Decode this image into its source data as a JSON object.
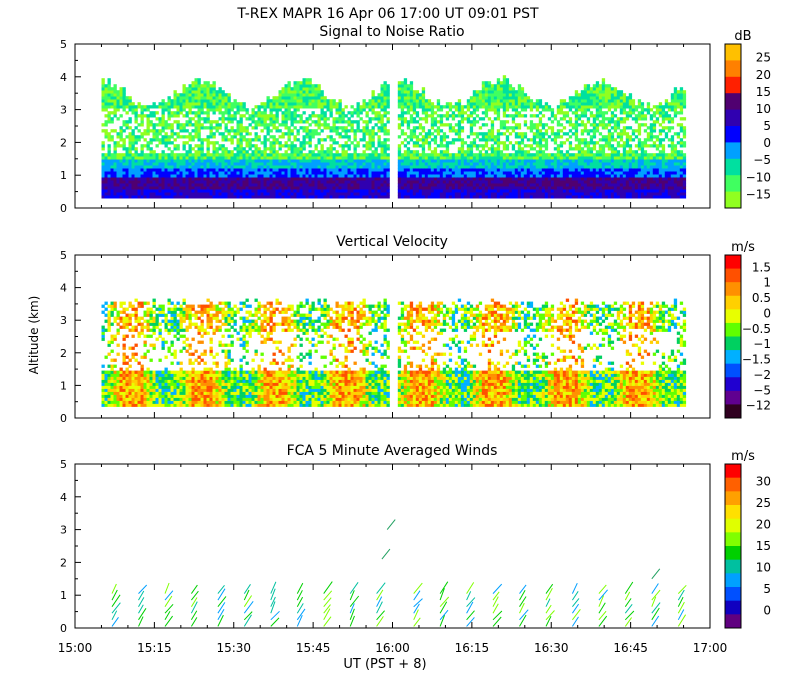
{
  "figure": {
    "title": "T-REX  MAPR 16 Apr 06  17:00 UT  09:01  PST",
    "ylabel": "Altitude (km)",
    "xlabel": "UT  (PST + 8)"
  },
  "chart_data": [
    {
      "type": "heatmap",
      "title": "Signal to Noise Ratio",
      "ylim": [
        0,
        5
      ],
      "yticks": [
        "0",
        "1",
        "2",
        "3",
        "4",
        "5"
      ],
      "x_range_ut": [
        "15:00",
        "17:00"
      ],
      "x_ticks": [
        "15:00",
        "15:15",
        "15:30",
        "15:45",
        "16:00",
        "16:15",
        "16:30",
        "16:45",
        "17:00"
      ],
      "data_gap_ut": [
        "15:59",
        "16:01"
      ],
      "colorbar": {
        "unit": "dB",
        "labels": [
          "25",
          "20",
          "15",
          "10",
          "5",
          "0",
          "−5",
          "−10",
          "−15"
        ],
        "colors": [
          "#ffc000",
          "#ff8000",
          "#ff2000",
          "#500070",
          "#3000b0",
          "#0000ff",
          "#00a0ff",
          "#00e0a0",
          "#40ff60",
          "#90ff20"
        ]
      }
    },
    {
      "type": "heatmap",
      "title": "Vertical Velocity",
      "ylim": [
        0,
        5
      ],
      "yticks": [
        "0",
        "1",
        "2",
        "3",
        "4",
        "5"
      ],
      "x_range_ut": [
        "15:00",
        "17:00"
      ],
      "colorbar": {
        "unit": "m/s",
        "labels": [
          "1.5",
          "1",
          "0.5",
          "0",
          "−0.5",
          "−1",
          "−1.5",
          "−2",
          "−5",
          "−12"
        ],
        "colors": [
          "#ff0000",
          "#ff5000",
          "#ff9000",
          "#ffd000",
          "#e8ff00",
          "#60ff00",
          "#00d060",
          "#00b0ff",
          "#0050ff",
          "#2000d0",
          "#600090",
          "#300020"
        ]
      }
    },
    {
      "type": "scatter",
      "title": "FCA 5 Minute Averaged Winds",
      "ylim": [
        0,
        5
      ],
      "yticks": [
        "0",
        "1",
        "2",
        "3",
        "4",
        "5"
      ],
      "x_range_ut": [
        "15:00",
        "17:00"
      ],
      "colorbar": {
        "unit": "m/s",
        "labels": [
          "30",
          "25",
          "20",
          "15",
          "10",
          "5",
          "0"
        ],
        "colors": [
          "#ff0000",
          "#ff6000",
          "#ffa000",
          "#ffe000",
          "#e0ff00",
          "#80ff00",
          "#00d000",
          "#00c0a0",
          "#00a0ff",
          "#0050ff",
          "#1000c0",
          "#600080"
        ]
      }
    }
  ]
}
